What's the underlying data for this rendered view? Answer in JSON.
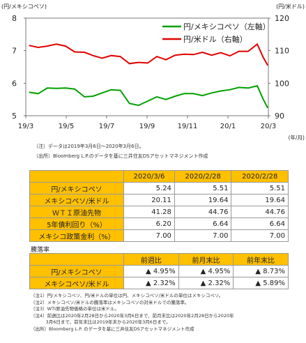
{
  "chart_data": {
    "type": "line",
    "left_axis_label": "(円/メキシコペソ)",
    "right_axis_label": "(円/米ドル)",
    "x_unit_label": "(年/月)",
    "x_ticks": [
      "19/3",
      "19/5",
      "19/7",
      "19/9",
      "19/11",
      "20/1",
      "20/3"
    ],
    "ylim_left": [
      5,
      8
    ],
    "ylim_right": [
      90,
      120
    ],
    "y_ticks_left": [
      "8",
      "7",
      "6",
      "5"
    ],
    "y_ticks_right": [
      "120",
      "110",
      "100",
      "90"
    ],
    "grid": false,
    "legend_position": "top-right",
    "series": [
      {
        "name": "円/メキシコペソ（左軸）",
        "axis": "left",
        "color": "#00a000",
        "x": [
          "2019-03-06",
          "2019-03-20",
          "2019-04-03",
          "2019-04-17",
          "2019-05-01",
          "2019-05-15",
          "2019-05-30",
          "2019-06-12",
          "2019-06-26",
          "2019-07-10",
          "2019-07-24",
          "2019-08-07",
          "2019-08-21",
          "2019-09-04",
          "2019-09-18",
          "2019-10-02",
          "2019-10-16",
          "2019-10-30",
          "2019-11-13",
          "2019-11-27",
          "2019-12-11",
          "2019-12-25",
          "2020-01-08",
          "2020-01-22",
          "2020-02-05",
          "2020-02-19",
          "2020-02-28",
          "2020-03-06"
        ],
        "values": [
          5.72,
          5.68,
          5.85,
          5.84,
          5.85,
          5.82,
          5.58,
          5.6,
          5.7,
          5.8,
          5.78,
          5.38,
          5.32,
          5.45,
          5.58,
          5.5,
          5.6,
          5.68,
          5.68,
          5.62,
          5.7,
          5.76,
          5.8,
          5.87,
          5.85,
          5.92,
          5.51,
          5.24
        ]
      },
      {
        "name": "円/米ドル（右軸）",
        "axis": "right",
        "color": "#e00000",
        "x": [
          "2019-03-06",
          "2019-03-20",
          "2019-04-03",
          "2019-04-17",
          "2019-05-01",
          "2019-05-15",
          "2019-05-30",
          "2019-06-12",
          "2019-06-26",
          "2019-07-10",
          "2019-07-24",
          "2019-08-07",
          "2019-08-21",
          "2019-09-04",
          "2019-09-18",
          "2019-10-02",
          "2019-10-16",
          "2019-10-30",
          "2019-11-13",
          "2019-11-27",
          "2019-12-11",
          "2019-12-25",
          "2020-01-08",
          "2020-01-22",
          "2020-02-05",
          "2020-02-19",
          "2020-02-28",
          "2020-03-06"
        ],
        "values": [
          111.6,
          111.0,
          111.4,
          112.0,
          111.4,
          109.6,
          109.5,
          108.5,
          107.7,
          108.5,
          108.2,
          106.0,
          106.4,
          106.2,
          108.2,
          107.2,
          108.6,
          108.9,
          108.8,
          109.5,
          108.6,
          109.4,
          108.4,
          109.8,
          109.8,
          112.0,
          108.0,
          105.5
        ]
      }
    ]
  },
  "notes": {
    "note1": "（注）データは2019年3月6日～2020年3月6日。",
    "note2": "（出所）Bloomberg L.P.のデータを基に三井住友DSアセットマネジメント作成"
  },
  "table1": {
    "headers": [
      "2020/3/6",
      "2020/2/28",
      "2020/2/28"
    ],
    "rows": [
      {
        "label": "円/メキシコペソ",
        "values": [
          "5.24",
          "5.51",
          "5.51"
        ]
      },
      {
        "label": "メキシコペソ/米ドル",
        "values": [
          "20.11",
          "19.64",
          "19.64"
        ]
      },
      {
        "label": "ＷＴＩ原油先物",
        "values": [
          "41.28",
          "44.76",
          "44.76"
        ]
      },
      {
        "label": "5年債利回り（%）",
        "values": [
          "6.20",
          "6.64",
          "6.64"
        ]
      },
      {
        "label": "メキシコ政策金利（%）",
        "values": [
          "7.00",
          "7.00",
          "7.00"
        ]
      }
    ]
  },
  "table2": {
    "title": "騰落率",
    "headers": [
      "前週比",
      "前月末比",
      "前年末比"
    ],
    "rows": [
      {
        "label": "円/メキシコペソ",
        "values": [
          "▲ 4.95%",
          "▲ 4.95%",
          "▲ 8.73%"
        ]
      },
      {
        "label": "メキシコペソ/米ドル",
        "values": [
          "▲ 2.32%",
          "▲ 2.32%",
          "▲ 5.89%"
        ]
      }
    ]
  },
  "footnotes": [
    "（注1）円/メキシコペソ、円/米ドルの単位は円、メキシコペソ/米ドルの単位はメキシコペソ。",
    "（注2）メキシコペソ/米ドルの騰落率はメキシコペソの対米ドルでの騰落率。",
    "（注3）WTI原油先物価格の単位は米ドル。",
    "（注4）前週比は2020年2月28日から2020年3月6日まで、前月末比は2020年2月28日から2020年",
    "　　　 3月6日まで、前年末比は2019年末から2020年3月6日まで。",
    "（出所）Bloomberg L.P. のデータを基に三井住友DSアセットマネジメント作成"
  ]
}
